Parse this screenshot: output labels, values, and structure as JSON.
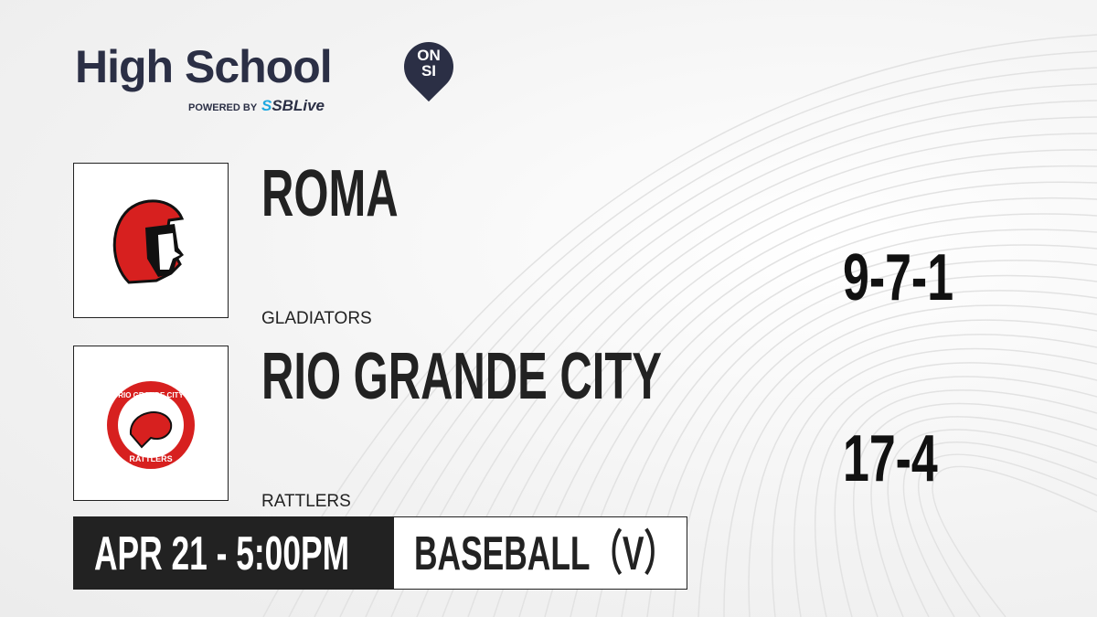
{
  "brand": {
    "title": "High School",
    "badge_top": "ON",
    "badge_bottom": "SI",
    "powered_by": "POWERED BY",
    "partner": "SBLive",
    "partner_mark": "S"
  },
  "teams": [
    {
      "name": "ROMA",
      "mascot": "GLADIATORS",
      "record": "9-7-1",
      "logo": "spartan-helmet-logo",
      "color": "#d7201f"
    },
    {
      "name": "RIO GRANDE CITY",
      "mascot": "RATTLERS",
      "record": "17-4",
      "logo": "rattlesnake-logo",
      "logo_text_top": "RIO GRANDE CITY",
      "logo_text_bottom": "RATTLERS",
      "color": "#d7201f"
    }
  ],
  "game": {
    "datetime": "APR 21 - 5:00PM",
    "sport": "BASEBALL（V）"
  }
}
